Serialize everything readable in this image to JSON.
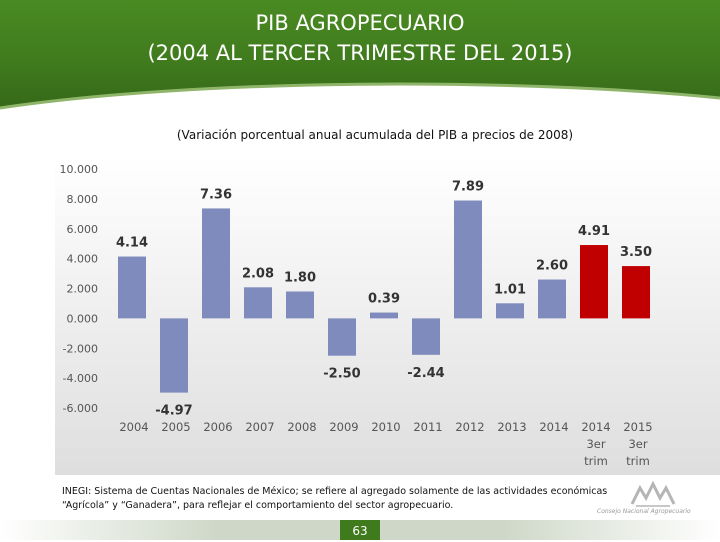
{
  "header": {
    "title_line1": "PIB AGROPECUARIO",
    "title_line2": "(2004 AL TERCER TRIMESTRE DEL 2015)"
  },
  "colors": {
    "header_green": "#3f7a1d",
    "bar_blue": "#7f8bbd",
    "bar_red": "#c00000"
  },
  "chart_data": {
    "type": "bar",
    "title": "(Variación porcentual anual acumulada del PIB a precios de 2008)",
    "categories": [
      [
        "2004"
      ],
      [
        "2005"
      ],
      [
        "2006"
      ],
      [
        "2007"
      ],
      [
        "2008"
      ],
      [
        "2009"
      ],
      [
        "2010"
      ],
      [
        "2011"
      ],
      [
        "2012"
      ],
      [
        "2013"
      ],
      [
        "2014"
      ],
      [
        "2014",
        "3er",
        "trim"
      ],
      [
        "2015",
        "3er",
        "trim"
      ]
    ],
    "values": [
      4.14,
      -4.97,
      7.36,
      2.08,
      1.8,
      -2.5,
      0.39,
      -2.44,
      7.89,
      1.01,
      2.6,
      4.91,
      3.5
    ],
    "data_labels": [
      "4.14",
      "-4.97",
      "7.36",
      "2.08",
      "1.80",
      "-2.50",
      "0.39",
      "-2.44",
      "7.89",
      "1.01",
      "2.60",
      "4.91",
      "3.50"
    ],
    "highlight": [
      false,
      false,
      false,
      false,
      false,
      false,
      false,
      false,
      false,
      false,
      false,
      true,
      true
    ],
    "ylim": [
      -6,
      10
    ],
    "yticks": [
      10,
      8,
      6,
      4,
      2,
      0,
      -2,
      -4,
      -6
    ],
    "ytick_labels": [
      "10.000",
      "8.000",
      "6.000",
      "4.000",
      "2.000",
      "0.000",
      "-2.000",
      "-4.000",
      "-6.000"
    ],
    "xlabel": "",
    "ylabel": "",
    "grid": false,
    "legend": "none"
  },
  "footer": {
    "note_line1": "INEGI: Sistema de Cuentas Nacionales de México; se refiere al agregado solamente de las actividades económicas",
    "note_line2": "“Agrícola” y “Ganadera”, para reflejar el comportamiento del sector agropecuario.",
    "page_number": "63",
    "logo_text": "Consejo Nacional Agropecuario"
  }
}
